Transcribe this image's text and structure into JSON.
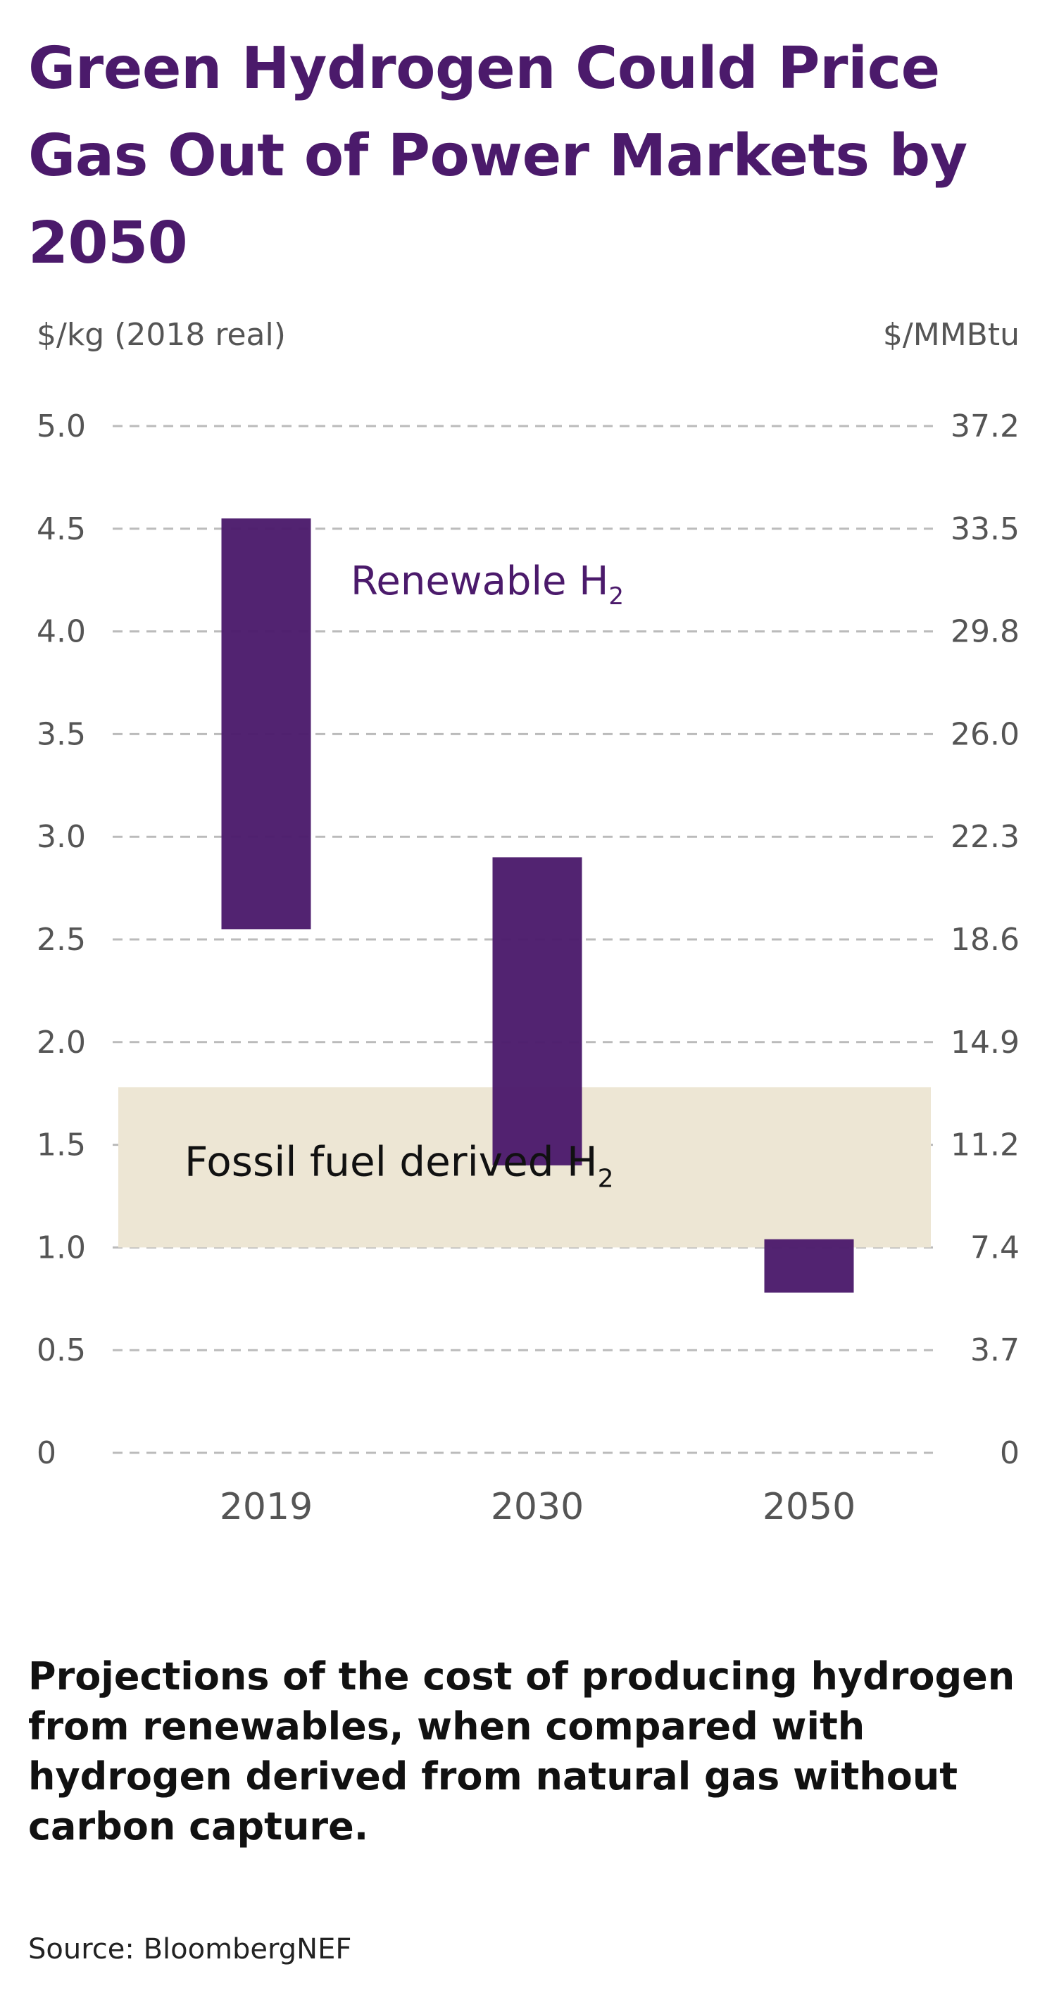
{
  "title": "Green Hydrogen Could Price Gas Out of Power Markets by 2050",
  "caption": "Projections of the cost of producing hydrogen from renewables, when compared with hydrogen derived from natural gas without carbon capture.",
  "source": "Source: BloombergNEF",
  "colors": {
    "title": "#4b1a6b",
    "renewable": "#4b1a6b",
    "fossil_band": "#ede6d4",
    "axis_text": "#555555",
    "grid": "#bbbbbb"
  },
  "chart_data": {
    "type": "bar",
    "subtype": "floating-range",
    "left_axis_label": "$/kg (2018 real)",
    "right_axis_label": "$/MMBtu",
    "ylim": [
      0,
      5.0
    ],
    "y_ticks": [
      "0",
      "0.5",
      "1.0",
      "1.5",
      "2.0",
      "2.5",
      "3.0",
      "3.5",
      "4.0",
      "4.5",
      "5.0"
    ],
    "y_tick_values": [
      0,
      0.5,
      1.0,
      1.5,
      2.0,
      2.5,
      3.0,
      3.5,
      4.0,
      4.5,
      5.0
    ],
    "y2_ticks": [
      "0",
      "3.7",
      "7.4",
      "11.2",
      "14.9",
      "18.6",
      "22.3",
      "26.0",
      "29.8",
      "33.5",
      "37.2"
    ],
    "categories": [
      "2019",
      "2030",
      "2050"
    ],
    "series": [
      {
        "name": "Renewable H2",
        "label": "Renewable H",
        "label_sub": "2",
        "ranges": [
          [
            2.55,
            4.55
          ],
          [
            1.4,
            2.9
          ],
          [
            0.78,
            1.04
          ]
        ]
      }
    ],
    "bands": [
      {
        "name": "Fossil fuel derived H2",
        "label": "Fossil fuel derived H",
        "label_sub": "2",
        "range": [
          1.0,
          1.78
        ]
      }
    ]
  }
}
